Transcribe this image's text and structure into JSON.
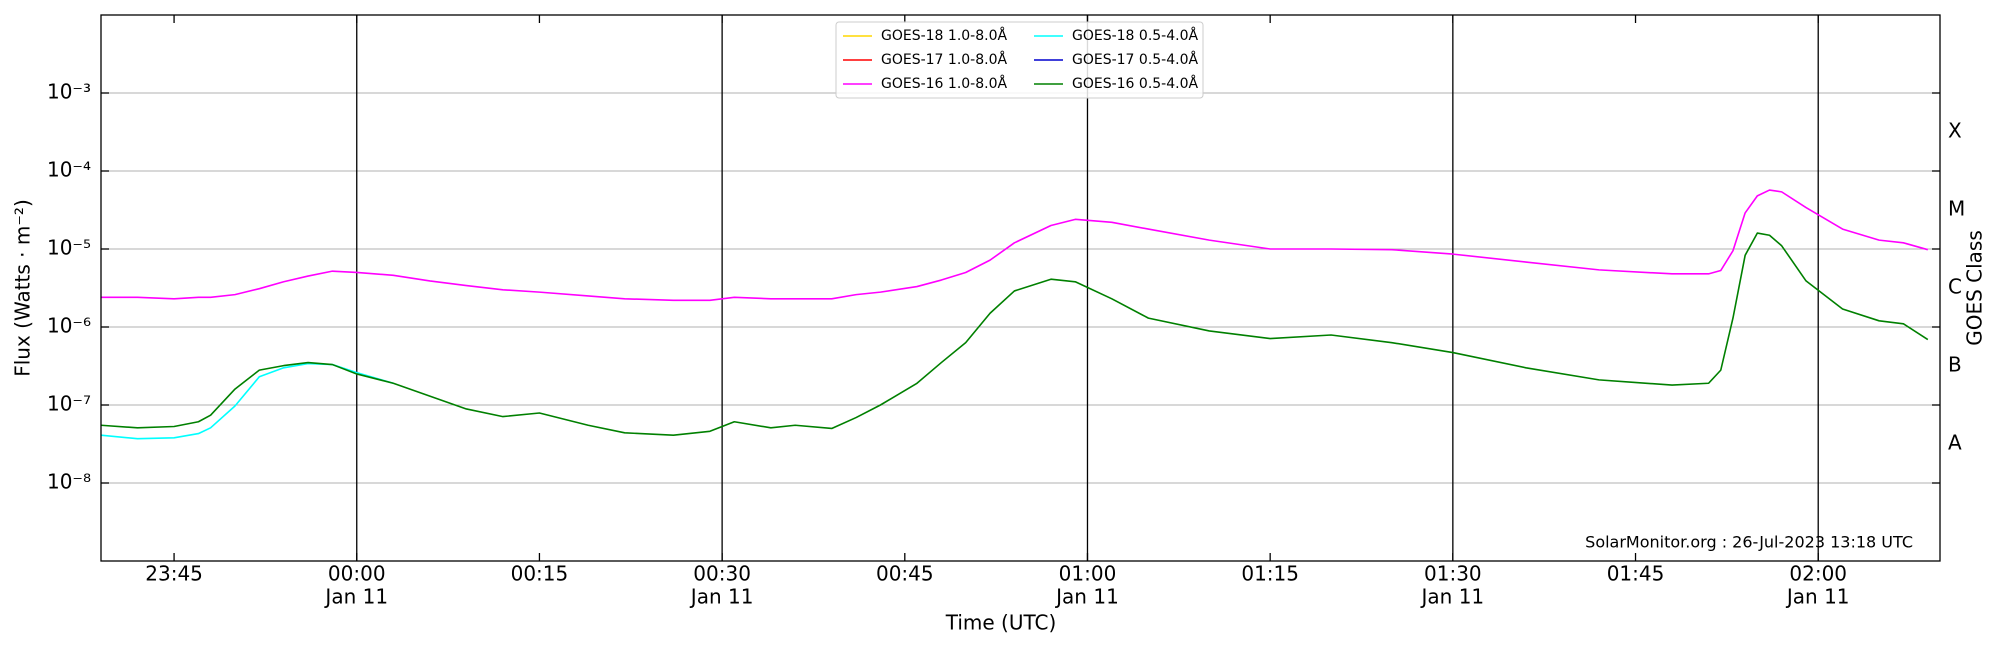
{
  "chart_data": {
    "type": "line",
    "ylabel": "Flux (Watts · m⁻²)",
    "xlabel": "Time (UTC)",
    "y2label": "GOES Class",
    "annotation": "SolarMonitor.org : 26-Jul-2023 13:18 UTC",
    "log_y": true,
    "grid": true,
    "legend": "upper center",
    "x": [
      "23:39",
      "23:42",
      "23:45",
      "23:47",
      "23:48",
      "23:50",
      "23:52",
      "23:54",
      "23:56",
      "23:58",
      "00:00",
      "00:03",
      "00:06",
      "00:09",
      "00:12",
      "00:15",
      "00:19",
      "00:22",
      "00:26",
      "00:29",
      "00:31",
      "00:34",
      "00:36",
      "00:39",
      "00:41",
      "00:43",
      "00:46",
      "00:48",
      "00:50",
      "00:52",
      "00:54",
      "00:57",
      "00:59",
      "01:02",
      "01:05",
      "01:10",
      "01:15",
      "01:20",
      "01:25",
      "01:30",
      "01:36",
      "01:42",
      "01:48",
      "01:51",
      "01:52",
      "01:53",
      "01:54",
      "01:55",
      "01:56",
      "01:57",
      "01:59",
      "02:02",
      "02:05",
      "02:07",
      "02:09"
    ],
    "xlim": [
      "23:39",
      "02:10"
    ],
    "xticks": [
      "23:45",
      {
        "value": "00:00",
        "label": "00:00",
        "date": "Jan 11"
      },
      "00:15",
      {
        "value": "00:30",
        "label": "00:30",
        "date": "Jan 11"
      },
      "00:45",
      {
        "value": "01:00",
        "label": "01:00",
        "date": "Jan 11"
      },
      "01:15",
      {
        "value": "01:30",
        "label": "01:30",
        "date": "Jan 11"
      },
      "01:45",
      {
        "value": "02:00",
        "label": "02:00",
        "date": "Jan 11"
      }
    ],
    "ylim": [
      1e-09,
      0.01
    ],
    "yticks": [
      {
        "value": 1e-08,
        "label": "10⁻⁸"
      },
      {
        "value": 1e-07,
        "label": "10⁻⁷"
      },
      {
        "value": 1e-06,
        "label": "10⁻⁶"
      },
      {
        "value": 1e-05,
        "label": "10⁻⁵"
      },
      {
        "value": 0.0001,
        "label": "10⁻⁴"
      },
      {
        "value": 0.001,
        "label": "10⁻³"
      }
    ],
    "y2lim": [
      1e-09,
      0.01
    ],
    "y2ticks": [
      {
        "value": 3.16e-08,
        "label": "A"
      },
      {
        "value": 3.16e-07,
        "label": "B"
      },
      {
        "value": 3.16e-06,
        "label": "C"
      },
      {
        "value": 3.16e-05,
        "label": "M"
      },
      {
        "value": 0.000316,
        "label": "X"
      }
    ],
    "series": [
      {
        "name": "GOES-18 1.0-8.0Å",
        "color": "#ffd700",
        "values": [
          null,
          null,
          null,
          null,
          null,
          null,
          null,
          null,
          null,
          null,
          null,
          null,
          null,
          null,
          null,
          null,
          null,
          null,
          null,
          null,
          null,
          null,
          null,
          null,
          null,
          null,
          null,
          null,
          null,
          null,
          null,
          null,
          null,
          null,
          null,
          null,
          null,
          null,
          null,
          null,
          null,
          null,
          null,
          null,
          null,
          null,
          null,
          null,
          null,
          null,
          null,
          null,
          null,
          null,
          null
        ]
      },
      {
        "name": "GOES-17 1.0-8.0Å",
        "color": "#ff0000",
        "values": [
          null,
          null,
          null,
          null,
          null,
          null,
          null,
          null,
          null,
          null,
          null,
          null,
          null,
          null,
          null,
          null,
          null,
          null,
          null,
          null,
          null,
          null,
          null,
          null,
          null,
          null,
          null,
          null,
          null,
          null,
          null,
          null,
          null,
          null,
          null,
          null,
          null,
          null,
          null,
          null,
          null,
          null,
          null,
          null,
          null,
          null,
          null,
          null,
          null,
          null,
          null,
          null,
          null,
          null,
          null
        ]
      },
      {
        "name": "GOES-16 1.0-8.0Å",
        "color": "#ff00ff",
        "values": [
          2.4e-06,
          2.4e-06,
          2.3e-06,
          2.4e-06,
          2.4e-06,
          2.6e-06,
          3.1e-06,
          3.8e-06,
          4.5e-06,
          5.2e-06,
          5e-06,
          4.6e-06,
          3.9e-06,
          3.4e-06,
          3e-06,
          2.8e-06,
          2.5e-06,
          2.3e-06,
          2.2e-06,
          2.2e-06,
          2.4e-06,
          2.3e-06,
          2.3e-06,
          2.3e-06,
          2.6e-06,
          2.8e-06,
          3.3e-06,
          4e-06,
          5e-06,
          7.2e-06,
          1.2e-05,
          2e-05,
          2.4e-05,
          2.2e-05,
          1.8e-05,
          1.3e-05,
          1e-05,
          1e-05,
          9.8e-06,
          8.6e-06,
          6.8e-06,
          5.4e-06,
          4.8e-06,
          4.8e-06,
          5.3e-06,
          9.5e-06,
          2.9e-05,
          4.8e-05,
          5.7e-05,
          5.4e-05,
          3.4e-05,
          1.8e-05,
          1.3e-05,
          1.2e-05,
          9.8e-06
        ]
      },
      {
        "name": "GOES-18 0.5-4.0Å",
        "color": "#00ffff",
        "values": [
          4.1e-08,
          3.7e-08,
          3.8e-08,
          4.3e-08,
          5.1e-08,
          9.7e-08,
          2.3e-07,
          3e-07,
          3.4e-07,
          3.3e-07,
          2.6e-07,
          1.9e-07,
          null,
          null,
          null,
          null,
          null,
          null,
          null,
          null,
          null,
          null,
          null,
          null,
          null,
          null,
          null,
          null,
          null,
          null,
          null,
          null,
          null,
          null,
          null,
          null,
          null,
          null,
          null,
          null,
          null,
          null,
          null,
          null,
          null,
          null,
          null,
          null,
          null,
          null,
          null,
          null,
          null,
          null,
          null
        ]
      },
      {
        "name": "GOES-17 0.5-4.0Å",
        "color": "#0000cd",
        "values": [
          null,
          null,
          null,
          null,
          null,
          null,
          null,
          null,
          null,
          null,
          null,
          null,
          null,
          null,
          null,
          null,
          null,
          null,
          null,
          null,
          null,
          null,
          null,
          null,
          null,
          null,
          null,
          null,
          null,
          null,
          null,
          null,
          null,
          null,
          null,
          null,
          null,
          null,
          null,
          null,
          null,
          null,
          null,
          null,
          null,
          null,
          null,
          null,
          null,
          null,
          null,
          null,
          null,
          null,
          null
        ]
      },
      {
        "name": "GOES-16 0.5-4.0Å",
        "color": "#008000",
        "values": [
          5.5e-08,
          5.1e-08,
          5.3e-08,
          6.1e-08,
          7.4e-08,
          1.6e-07,
          2.8e-07,
          3.2e-07,
          3.5e-07,
          3.3e-07,
          2.5e-07,
          1.9e-07,
          1.3e-07,
          8.9e-08,
          7.1e-08,
          7.9e-08,
          5.5e-08,
          4.4e-08,
          4.1e-08,
          4.6e-08,
          6.1e-08,
          5.1e-08,
          5.5e-08,
          5e-08,
          6.9e-08,
          1e-07,
          1.9e-07,
          3.5e-07,
          6.3e-07,
          1.5e-06,
          2.9e-06,
          4.1e-06,
          3.8e-06,
          2.3e-06,
          1.3e-06,
          8.9e-07,
          7.1e-07,
          7.9e-07,
          6.3e-07,
          4.7e-07,
          3e-07,
          2.1e-07,
          1.8e-07,
          1.9e-07,
          2.8e-07,
          1.3e-06,
          8.3e-06,
          1.6e-05,
          1.5e-05,
          1.1e-05,
          3.9e-06,
          1.7e-06,
          1.2e-06,
          1.1e-06,
          6.9e-07
        ]
      }
    ]
  }
}
